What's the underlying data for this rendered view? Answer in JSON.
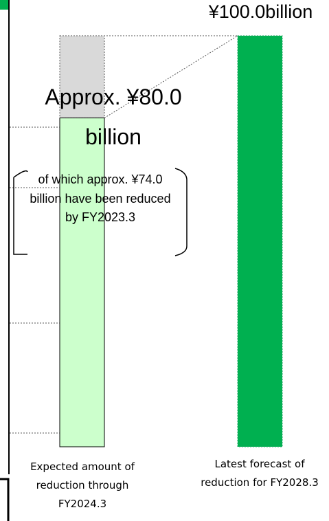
{
  "chart_data": {
    "type": "bar",
    "categories": [
      "Expected amount of reduction through FY2024.3",
      "Latest forecast of reduction for FY2028.3"
    ],
    "series": [
      {
        "colors": [
          "#ccffcc",
          "#00b050"
        ],
        "values": [
          80,
          100
        ]
      },
      {
        "color": "#d9d9d9",
        "values": [
          20,
          null
        ]
      }
    ],
    "ylim": [
      0,
      100
    ],
    "annotations": [
      "¥100.0billion",
      "Approx. ¥80.0 billion",
      "of which approx. ¥74.0 billion have been reduced by FY2023.3"
    ]
  }
}
